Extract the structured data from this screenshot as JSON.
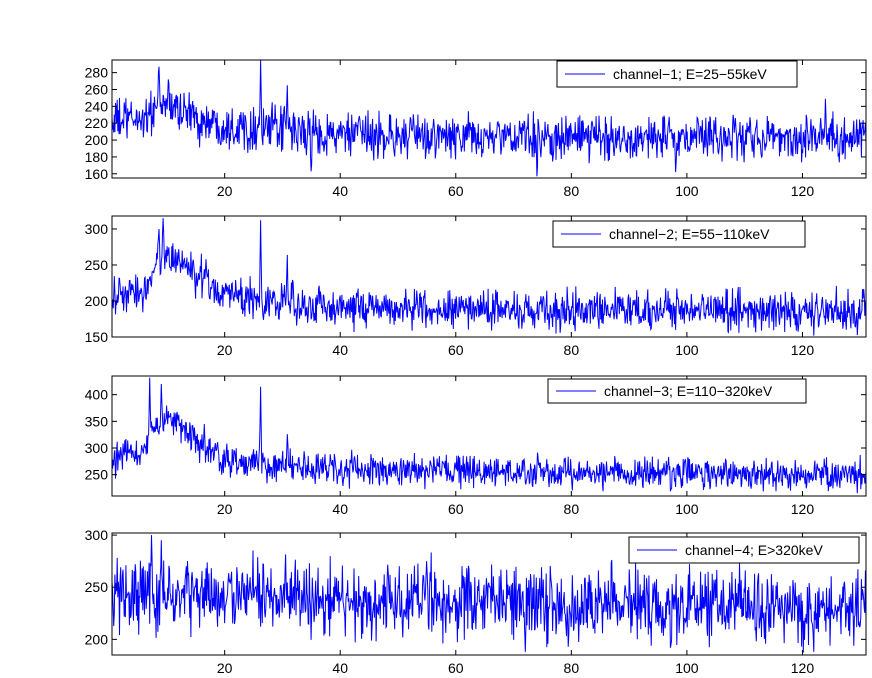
{
  "figure": {
    "line_color": "#0000ff",
    "axis_color": "#000000",
    "background": "#ffffff"
  },
  "chart_data": [
    {
      "type": "line",
      "series": [
        {
          "name": "channel−1; E=25−55keV",
          "color": "#0000ff"
        }
      ],
      "xlim": [
        0.5,
        131
      ],
      "ylim": [
        155,
        295
      ],
      "xticks": [
        20,
        40,
        60,
        80,
        100,
        120
      ],
      "yticks": [
        160,
        180,
        200,
        220,
        240,
        260,
        280
      ],
      "baseline": [
        [
          0.5,
          222
        ],
        [
          6,
          226
        ],
        [
          9,
          242
        ],
        [
          12,
          238
        ],
        [
          16,
          222
        ],
        [
          20,
          218
        ],
        [
          24,
          215
        ],
        [
          28,
          214
        ],
        [
          32,
          210
        ],
        [
          40,
          206
        ],
        [
          60,
          203
        ],
        [
          100,
          203
        ],
        [
          131,
          204
        ]
      ],
      "noise_amplitude": 13,
      "spikes": [
        [
          8.6,
          287
        ],
        [
          10.2,
          272
        ],
        [
          26.2,
          295
        ],
        [
          30.8,
          265
        ],
        [
          35,
          163
        ],
        [
          74,
          157
        ],
        [
          98,
          162
        ],
        [
          124,
          249
        ]
      ],
      "legend": {
        "location": "top-right"
      },
      "grid": false
    },
    {
      "type": "line",
      "series": [
        {
          "name": "channel−2; E=55−110keV",
          "color": "#0000ff"
        }
      ],
      "xlim": [
        0.5,
        131
      ],
      "ylim": [
        150,
        318
      ],
      "xticks": [
        20,
        40,
        60,
        80,
        100,
        120
      ],
      "yticks": [
        150,
        200,
        250,
        300
      ],
      "baseline": [
        [
          0.5,
          205
        ],
        [
          6,
          212
        ],
        [
          8,
          250
        ],
        [
          10,
          265
        ],
        [
          13,
          250
        ],
        [
          16,
          228
        ],
        [
          20,
          212
        ],
        [
          24,
          203
        ],
        [
          28,
          200
        ],
        [
          32,
          196
        ],
        [
          40,
          192
        ],
        [
          60,
          188
        ],
        [
          100,
          187
        ],
        [
          131,
          185
        ]
      ],
      "noise_amplitude": 13,
      "spikes": [
        [
          8.6,
          300
        ],
        [
          9.3,
          315
        ],
        [
          16.8,
          258
        ],
        [
          26.2,
          312
        ],
        [
          30.8,
          264
        ],
        [
          122,
          152
        ]
      ],
      "legend": {
        "location": "top-right"
      },
      "grid": false
    },
    {
      "type": "line",
      "series": [
        {
          "name": "channel−3; E=110−320keV",
          "color": "#0000ff"
        }
      ],
      "xlim": [
        0.5,
        131
      ],
      "ylim": [
        210,
        435
      ],
      "xticks": [
        20,
        40,
        60,
        80,
        100,
        120
      ],
      "yticks": [
        250,
        300,
        350,
        400
      ],
      "baseline": [
        [
          0.5,
          272
        ],
        [
          3,
          290
        ],
        [
          5,
          282
        ],
        [
          8,
          340
        ],
        [
          10,
          362
        ],
        [
          13,
          335
        ],
        [
          16,
          300
        ],
        [
          20,
          278
        ],
        [
          24,
          272
        ],
        [
          28,
          268
        ],
        [
          32,
          265
        ],
        [
          40,
          260
        ],
        [
          60,
          255
        ],
        [
          100,
          252
        ],
        [
          131,
          248
        ]
      ],
      "noise_amplitude": 14,
      "spikes": [
        [
          7,
          432
        ],
        [
          9,
          420
        ],
        [
          16.5,
          345
        ],
        [
          26.2,
          415
        ],
        [
          30.8,
          326
        ]
      ],
      "legend": {
        "location": "top-right"
      },
      "grid": false
    },
    {
      "type": "line",
      "series": [
        {
          "name": "channel−4; E>320keV",
          "color": "#0000ff"
        }
      ],
      "xlim": [
        0.5,
        131
      ],
      "ylim": [
        185,
        302
      ],
      "xticks": [
        20,
        40,
        60,
        80,
        100,
        120
      ],
      "yticks": [
        200,
        250,
        300
      ],
      "baseline": [
        [
          0.5,
          243
        ],
        [
          20,
          242
        ],
        [
          40,
          238
        ],
        [
          60,
          236
        ],
        [
          80,
          234
        ],
        [
          100,
          232
        ],
        [
          131,
          230
        ]
      ],
      "noise_amplitude": 17,
      "spikes": [
        [
          7.3,
          300
        ],
        [
          9,
          295
        ],
        [
          55,
          275
        ],
        [
          72,
          188
        ],
        [
          122,
          188
        ]
      ],
      "legend": {
        "location": "top-right"
      },
      "grid": false
    }
  ]
}
